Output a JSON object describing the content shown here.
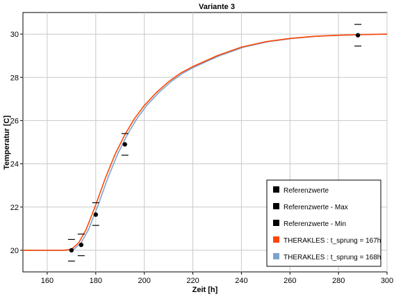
{
  "chart_data": {
    "type": "line",
    "title": "Variante 3",
    "xlabel": "Zeit [h]",
    "ylabel": "Temperatur [C]",
    "xlim": [
      150,
      300
    ],
    "ylim": [
      19,
      31
    ],
    "xticks": [
      160,
      180,
      200,
      220,
      240,
      260,
      280,
      300
    ],
    "yticks": [
      20,
      22,
      24,
      26,
      28,
      30
    ],
    "grid": true,
    "legend_position": "bottom-right",
    "series": [
      {
        "name": "Referenzwerte",
        "kind": "points",
        "color": "#000000",
        "x": [
          170,
          174,
          180,
          192,
          288
        ],
        "y": [
          20.0,
          20.25,
          21.65,
          24.9,
          29.95
        ]
      },
      {
        "name": "Referenzwerte - Max",
        "kind": "bar-marker",
        "color": "#000000",
        "x": [
          170,
          174,
          180,
          192,
          288
        ],
        "y": [
          20.5,
          20.75,
          22.2,
          25.4,
          30.45
        ]
      },
      {
        "name": "Referenzwerte - Min",
        "kind": "bar-marker",
        "color": "#000000",
        "x": [
          170,
          174,
          180,
          192,
          288
        ],
        "y": [
          19.5,
          19.75,
          21.15,
          24.4,
          29.45
        ]
      },
      {
        "name": "THERAKLES : t_sprung = 167h",
        "kind": "line",
        "color": "#ff4500",
        "x": [
          150,
          167,
          170,
          173,
          176,
          180,
          184,
          188,
          192,
          196,
          200,
          205,
          210,
          215,
          220,
          230,
          240,
          250,
          260,
          270,
          280,
          290,
          300
        ],
        "y": [
          20.0,
          20.0,
          20.05,
          20.35,
          20.95,
          22.1,
          23.35,
          24.45,
          25.35,
          26.1,
          26.7,
          27.3,
          27.8,
          28.2,
          28.5,
          29.0,
          29.4,
          29.65,
          29.8,
          29.9,
          29.95,
          29.98,
          30.0
        ]
      },
      {
        "name": "THERAKLES : t_sprung = 168h",
        "kind": "line",
        "color": "#7aa3d0",
        "x": [
          150,
          168,
          171,
          174,
          177,
          181,
          185,
          189,
          193,
          197,
          201,
          206,
          211,
          216,
          221,
          231,
          241,
          251,
          261,
          271,
          281,
          291,
          300
        ],
        "y": [
          20.0,
          20.0,
          20.05,
          20.35,
          20.95,
          22.1,
          23.35,
          24.45,
          25.35,
          26.1,
          26.7,
          27.3,
          27.8,
          28.2,
          28.5,
          29.0,
          29.4,
          29.65,
          29.8,
          29.9,
          29.95,
          29.98,
          30.0
        ]
      }
    ]
  }
}
